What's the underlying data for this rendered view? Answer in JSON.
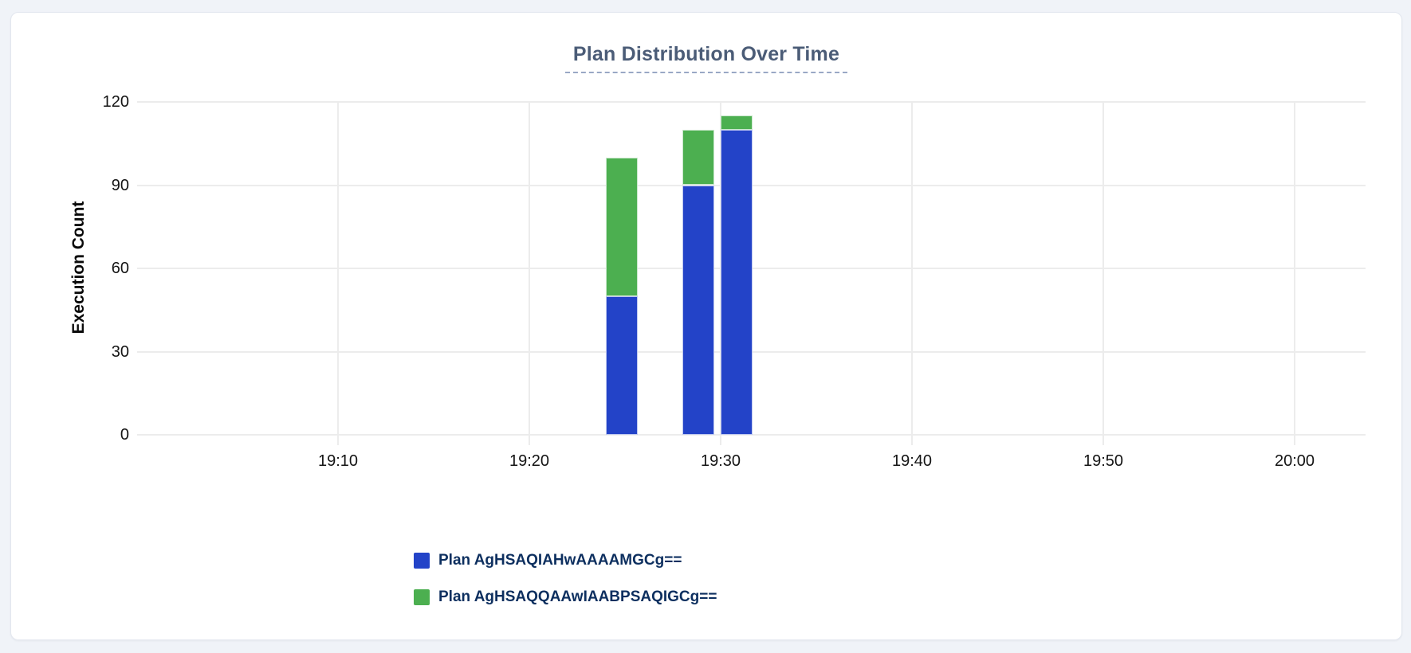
{
  "card": {
    "name": "plan-distribution-card"
  },
  "chart_data": {
    "type": "bar",
    "stacked": true,
    "title": "Plan Distribution Over Time",
    "xlabel": "",
    "ylabel": "Execution Count",
    "ylim": [
      0,
      120
    ],
    "y_ticks": [
      0,
      30,
      60,
      90,
      120
    ],
    "x_tick_labels": [
      "19:10",
      "19:20",
      "19:30",
      "19:40",
      "19:50",
      "20:00"
    ],
    "grid": true,
    "legend_position": "bottom-left",
    "bucket_minutes": 2,
    "categories": [
      "19:24",
      "19:28",
      "19:30"
    ],
    "series": [
      {
        "name": "Plan AgHSAQIAHwAAAAMGCg==",
        "color": "#2343c8",
        "values": [
          50,
          90,
          110
        ]
      },
      {
        "name": "Plan AgHSAQQAAwIAABPSAQIGCg==",
        "color": "#4caf50",
        "values": [
          50,
          20,
          5
        ]
      }
    ],
    "totals": [
      100,
      110,
      115
    ]
  },
  "colors": {
    "page_background": "#f0f3f8",
    "card_background": "#ffffff",
    "card_border": "#e3e7ef",
    "title_text": "#4b5c77",
    "title_underline": "#9aa8c5",
    "gridline": "#ececec",
    "tick_text": "#141414",
    "axis_label_text": "#0a0a0a",
    "legend_text": "#0d2f5f",
    "series_blue": "#2343c8",
    "series_green": "#4caf50"
  }
}
